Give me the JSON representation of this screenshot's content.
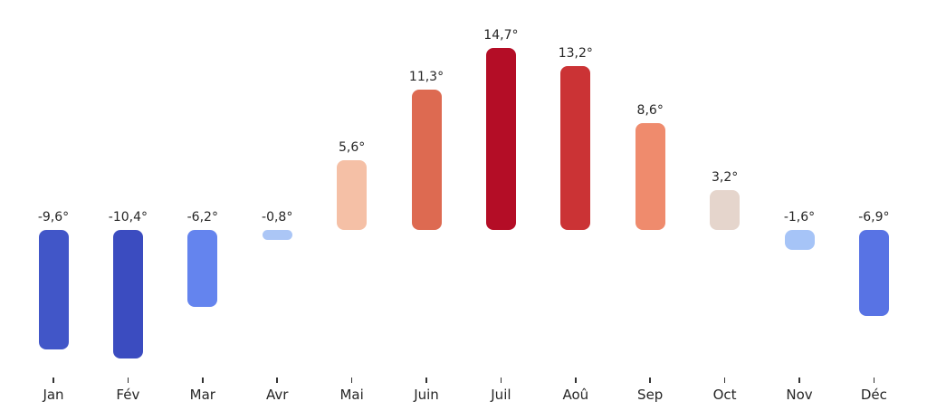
{
  "chart_data": {
    "type": "bar",
    "title": "",
    "xlabel": "",
    "ylabel": "",
    "unit": "°",
    "decimal_separator": ",",
    "grid": false,
    "legend": null,
    "baseline": 0,
    "ylim": [
      -13,
      17
    ],
    "categories": [
      "Jan",
      "Fév",
      "Mar",
      "Avr",
      "Mai",
      "Juin",
      "Juil",
      "Aoû",
      "Sep",
      "Oct",
      "Nov",
      "Déc"
    ],
    "values": [
      -9.6,
      -10.4,
      -6.2,
      -0.8,
      5.6,
      11.3,
      14.7,
      13.2,
      8.6,
      3.2,
      -1.6,
      -6.9
    ],
    "value_labels": [
      "-9,6°",
      "-10,4°",
      "-6,2°",
      "-0,8°",
      "5,6°",
      "11,3°",
      "14,7°",
      "13,2°",
      "8,6°",
      "3,2°",
      "-1,6°",
      "-6,9°"
    ],
    "bar_colors": [
      "#4156C8",
      "#3B4CC0",
      "#6484EE",
      "#ABC6F6",
      "#F5C0A6",
      "#DD6A51",
      "#B40D26",
      "#CB3335",
      "#EF8B6D",
      "#E5D5CC",
      "#A6C4F7",
      "#5873E4"
    ]
  },
  "style": {
    "background": "#ffffff",
    "text_color": "#262626",
    "tick_color": "#333333",
    "colormap": "coolwarm"
  }
}
